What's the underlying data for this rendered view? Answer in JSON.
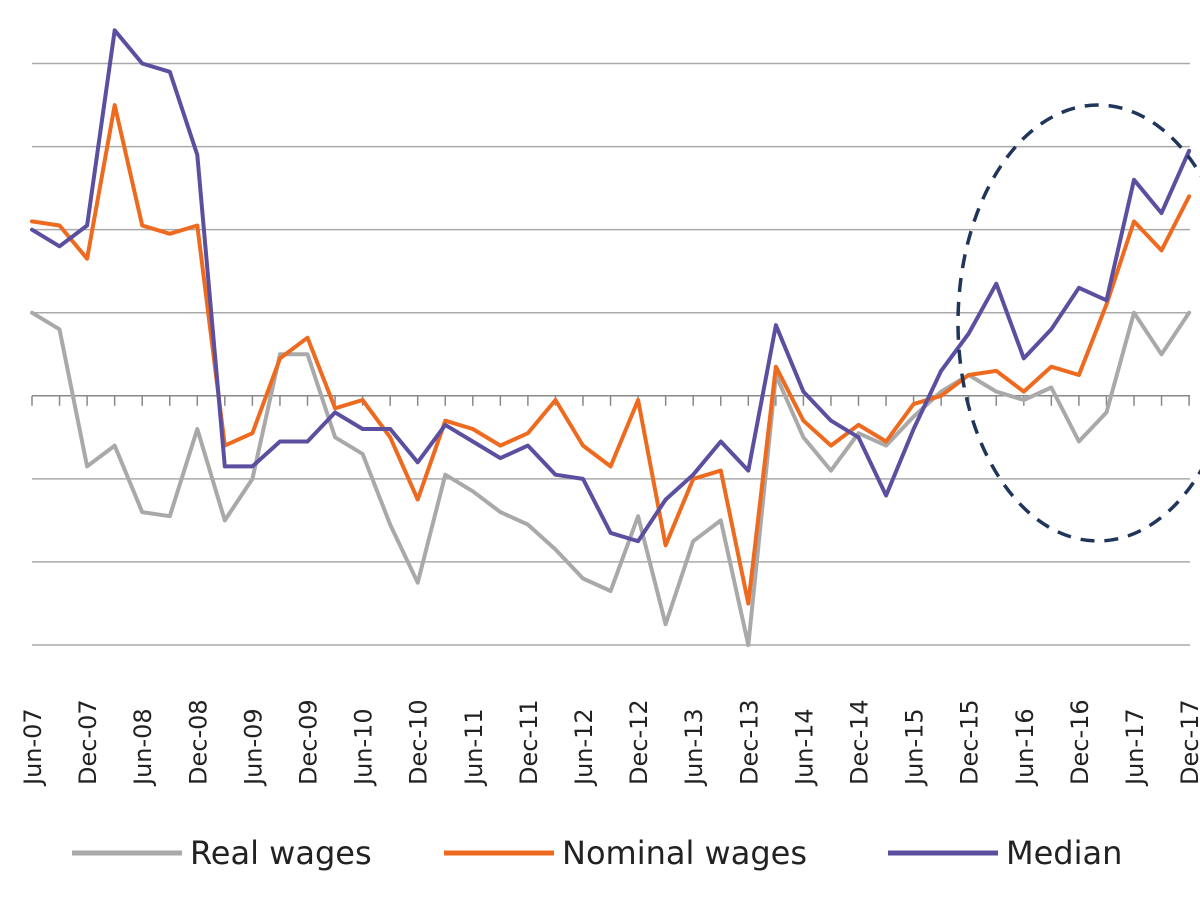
{
  "chart_data": {
    "type": "line",
    "title": "",
    "xlabel": "",
    "ylabel": "",
    "ylim": [
      -3,
      4.5
    ],
    "grid": true,
    "legend_position": "bottom",
    "tick_labels": [
      "Jun-07",
      "Dec-07",
      "Jun-08",
      "Dec-08",
      "Jun-09",
      "Dec-09",
      "Jun-10",
      "Dec-10",
      "Jun-11",
      "Dec-11",
      "Jun-12",
      "Dec-12",
      "Jun-13",
      "Dec-13",
      "Jun-14",
      "Dec-14",
      "Jun-15",
      "Dec-15",
      "Jun-16",
      "Dec-16",
      "Jun-17",
      "Dec-17"
    ],
    "x": [
      "Jun-07",
      "Sep-07",
      "Dec-07",
      "Mar-08",
      "Jun-08",
      "Sep-08",
      "Dec-08",
      "Mar-09",
      "Jun-09",
      "Sep-09",
      "Dec-09",
      "Mar-10",
      "Jun-10",
      "Sep-10",
      "Dec-10",
      "Mar-11",
      "Jun-11",
      "Sep-11",
      "Dec-11",
      "Mar-12",
      "Jun-12",
      "Sep-12",
      "Dec-12",
      "Mar-13",
      "Jun-13",
      "Sep-13",
      "Dec-13",
      "Mar-14",
      "Jun-14",
      "Sep-14",
      "Dec-14",
      "Mar-15",
      "Jun-15",
      "Sep-15",
      "Dec-15",
      "Mar-16",
      "Jun-16",
      "Sep-16",
      "Dec-16",
      "Mar-17",
      "Jun-17",
      "Sep-17",
      "Dec-17"
    ],
    "series": [
      {
        "name": "Real wages",
        "color": "#a9a9a9",
        "values": [
          1,
          0.8,
          -0.85,
          -0.6,
          -1.4,
          -1.45,
          -0.4,
          -1.5,
          -1,
          0.5,
          0.5,
          -0.5,
          -0.7,
          -1.55,
          -2.25,
          -0.95,
          -1.15,
          -1.4,
          -1.55,
          -1.85,
          -2.2,
          -2.35,
          -1.45,
          -2.75,
          -1.75,
          -1.5,
          -3,
          0.25,
          -0.5,
          -0.9,
          -0.45,
          -0.6,
          -0.25,
          0.05,
          0.25,
          0.05,
          -0.05,
          0.1,
          -0.55,
          -0.2,
          1,
          0.5,
          1
        ]
      },
      {
        "name": "Nominal wages",
        "color": "#ee6a1f",
        "values": [
          2.1,
          2.05,
          1.65,
          3.5,
          2.05,
          1.95,
          2.05,
          -0.6,
          -0.45,
          0.45,
          0.7,
          -0.15,
          -0.05,
          -0.5,
          -1.25,
          -0.3,
          -0.4,
          -0.6,
          -0.45,
          -0.05,
          -0.6,
          -0.85,
          -0.05,
          -1.8,
          -1,
          -0.9,
          -2.5,
          0.35,
          -0.3,
          -0.6,
          -0.35,
          -0.55,
          -0.1,
          0,
          0.25,
          0.3,
          0.05,
          0.35,
          0.25,
          1.1,
          2.1,
          1.75,
          2.4
        ]
      },
      {
        "name": "Median",
        "color": "#5b4f9f",
        "values": [
          2,
          1.8,
          2.05,
          4.4,
          4,
          3.9,
          2.9,
          -0.85,
          -0.85,
          -0.55,
          -0.55,
          -0.2,
          -0.4,
          -0.4,
          -0.8,
          -0.35,
          -0.55,
          -0.75,
          -0.6,
          -0.95,
          -1,
          -1.65,
          -1.75,
          -1.25,
          -0.95,
          -0.55,
          -0.9,
          0.85,
          0.05,
          -0.3,
          -0.5,
          -1.2,
          -0.4,
          0.3,
          0.75,
          1.35,
          0.45,
          0.8,
          1.3,
          1.15,
          2.6,
          2.2,
          2.95
        ]
      }
    ],
    "legend": [
      "Real wages",
      "Nominal wages",
      "Median"
    ],
    "annotation": "dashed ellipse highlighting Dec-15 to Dec-17",
    "axis_color": "#888888",
    "grid_color": "#aaaaaa",
    "ellipse_color": "#1f3559"
  }
}
